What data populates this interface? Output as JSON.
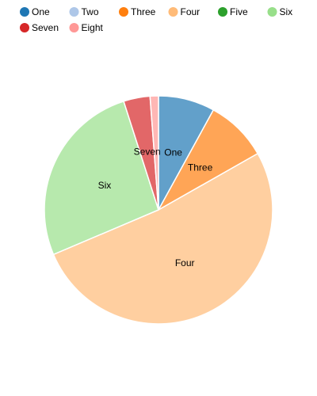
{
  "chart_data": {
    "type": "pie",
    "legend_position": "top",
    "show_grid": false,
    "categories": [
      "One",
      "Two",
      "Three",
      "Four",
      "Five",
      "Six",
      "Seven",
      "Eight"
    ],
    "values": [
      8.1,
      0,
      8.9,
      52.5,
      0,
      26.8,
      3.8,
      1.2
    ],
    "colors": [
      "#1f77b4",
      "#aec7e8",
      "#ff7f0e",
      "#ffbb78",
      "#2ca02c",
      "#98df8a",
      "#d62728",
      "#ff9896"
    ],
    "slice_label_color": "#000000"
  }
}
